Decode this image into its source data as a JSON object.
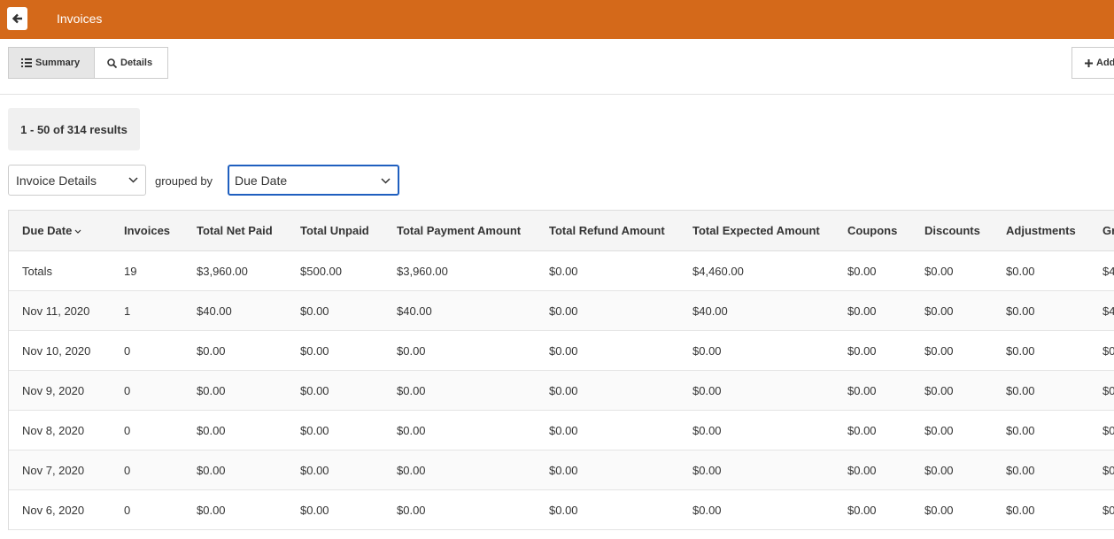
{
  "header": {
    "title": "Invoices"
  },
  "toolbar": {
    "summary": "Summary",
    "details": "Details",
    "add": "Add"
  },
  "results": "1 - 50 of 314 results",
  "filters": {
    "report": "Invoice Details",
    "grouped_by": "grouped by",
    "group": "Due Date"
  },
  "table": {
    "columns": [
      "Due Date",
      "Invoices",
      "Total Net Paid",
      "Total Unpaid",
      "Total Payment Amount",
      "Total Refund Amount",
      "Total Expected Amount",
      "Coupons",
      "Discounts",
      "Adjustments",
      "Gr"
    ],
    "rows": [
      [
        "Totals",
        "19",
        "$3,960.00",
        "$500.00",
        "$3,960.00",
        "$0.00",
        "$4,460.00",
        "$0.00",
        "$0.00",
        "$0.00",
        "$4"
      ],
      [
        "Nov 11, 2020",
        "1",
        "$40.00",
        "$0.00",
        "$40.00",
        "$0.00",
        "$40.00",
        "$0.00",
        "$0.00",
        "$0.00",
        "$4"
      ],
      [
        "Nov 10, 2020",
        "0",
        "$0.00",
        "$0.00",
        "$0.00",
        "$0.00",
        "$0.00",
        "$0.00",
        "$0.00",
        "$0.00",
        "$0"
      ],
      [
        "Nov 9, 2020",
        "0",
        "$0.00",
        "$0.00",
        "$0.00",
        "$0.00",
        "$0.00",
        "$0.00",
        "$0.00",
        "$0.00",
        "$0"
      ],
      [
        "Nov 8, 2020",
        "0",
        "$0.00",
        "$0.00",
        "$0.00",
        "$0.00",
        "$0.00",
        "$0.00",
        "$0.00",
        "$0.00",
        "$0"
      ],
      [
        "Nov 7, 2020",
        "0",
        "$0.00",
        "$0.00",
        "$0.00",
        "$0.00",
        "$0.00",
        "$0.00",
        "$0.00",
        "$0.00",
        "$0"
      ],
      [
        "Nov 6, 2020",
        "0",
        "$0.00",
        "$0.00",
        "$0.00",
        "$0.00",
        "$0.00",
        "$0.00",
        "$0.00",
        "$0.00",
        "$0"
      ]
    ]
  }
}
